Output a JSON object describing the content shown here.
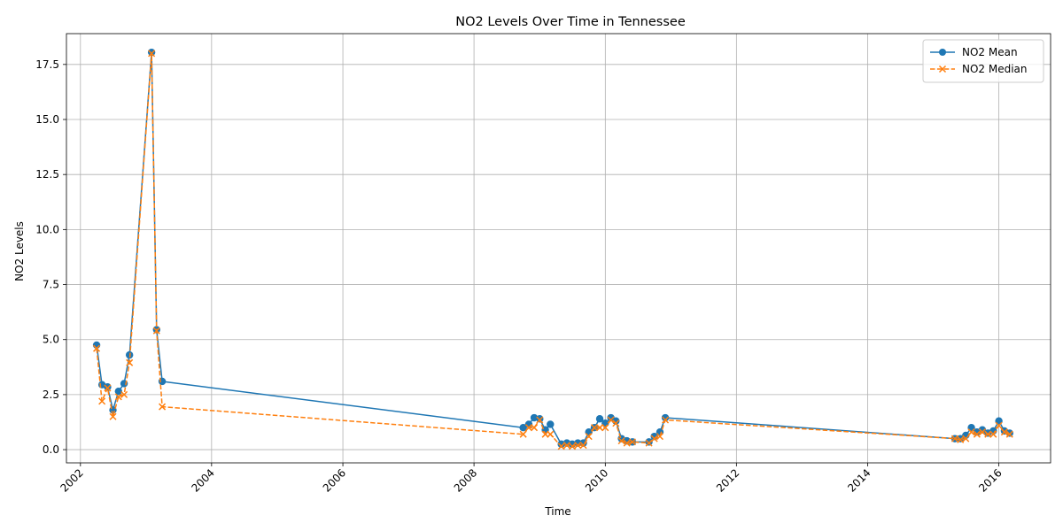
{
  "chart_data": {
    "type": "line",
    "title": "NO2 Levels Over Time in Tennessee",
    "xlabel": "Time",
    "ylabel": "NO2 Levels",
    "xlim": [
      "2001-10-15",
      "2016-10-15"
    ],
    "ylim": [
      -0.6,
      18.9
    ],
    "x_ticks": [
      "2002-01-01",
      "2004-01-01",
      "2006-01-01",
      "2008-01-01",
      "2010-01-01",
      "2012-01-01",
      "2014-01-01",
      "2016-01-01"
    ],
    "x_tick_labels": [
      "2002",
      "2004",
      "2006",
      "2008",
      "2010",
      "2012",
      "2014",
      "2016"
    ],
    "y_ticks": [
      0,
      2.5,
      5,
      7.5,
      10,
      12.5,
      15,
      17.5
    ],
    "y_tick_labels": [
      "0.0",
      "2.5",
      "5.0",
      "7.5",
      "10.0",
      "12.5",
      "15.0",
      "17.5"
    ],
    "grid": true,
    "legend_position": "top-right",
    "x": [
      "2002-04-01",
      "2002-05-01",
      "2002-06-01",
      "2002-07-01",
      "2002-08-01",
      "2002-09-01",
      "2002-10-01",
      "2003-02-01",
      "2003-03-01",
      "2003-04-01",
      "2008-10-01",
      "2008-11-01",
      "2008-12-01",
      "2009-01-01",
      "2009-02-01",
      "2009-03-01",
      "2009-05-01",
      "2009-06-01",
      "2009-07-01",
      "2009-08-01",
      "2009-09-01",
      "2009-10-01",
      "2009-11-01",
      "2009-12-01",
      "2010-01-01",
      "2010-02-01",
      "2010-03-01",
      "2010-04-01",
      "2010-05-01",
      "2010-06-01",
      "2010-09-01",
      "2010-10-01",
      "2010-11-01",
      "2010-12-01",
      "2015-05-01",
      "2015-06-01",
      "2015-07-01",
      "2015-08-01",
      "2015-09-01",
      "2015-10-01",
      "2015-11-01",
      "2015-12-01",
      "2016-01-01",
      "2016-02-01",
      "2016-03-01"
    ],
    "series": [
      {
        "name": "NO2 Mean",
        "color": "#1f77b4",
        "linestyle": "solid",
        "marker": "circle",
        "values": [
          4.75,
          2.95,
          2.85,
          1.8,
          2.65,
          3.0,
          4.3,
          18.05,
          5.45,
          3.1,
          1.0,
          1.15,
          1.45,
          1.4,
          0.9,
          1.15,
          0.25,
          0.3,
          0.25,
          0.3,
          0.3,
          0.8,
          1.0,
          1.4,
          1.2,
          1.45,
          1.3,
          0.5,
          0.4,
          0.35,
          0.35,
          0.6,
          0.8,
          1.45,
          0.5,
          0.5,
          0.65,
          1.0,
          0.8,
          0.9,
          0.75,
          0.85,
          1.3,
          0.85,
          0.75
        ]
      },
      {
        "name": "NO2 Median",
        "color": "#ff7f0e",
        "linestyle": "dashed",
        "marker": "x",
        "values": [
          4.6,
          2.2,
          2.8,
          1.5,
          2.4,
          2.5,
          3.95,
          18.0,
          5.4,
          1.95,
          0.7,
          1.0,
          1.0,
          1.35,
          0.7,
          0.7,
          0.15,
          0.2,
          0.15,
          0.2,
          0.2,
          0.6,
          1.0,
          1.0,
          1.0,
          1.35,
          1.2,
          0.4,
          0.3,
          0.35,
          0.3,
          0.5,
          0.6,
          1.35,
          0.5,
          0.45,
          0.5,
          0.8,
          0.7,
          0.8,
          0.7,
          0.7,
          1.1,
          0.8,
          0.7
        ]
      }
    ]
  }
}
